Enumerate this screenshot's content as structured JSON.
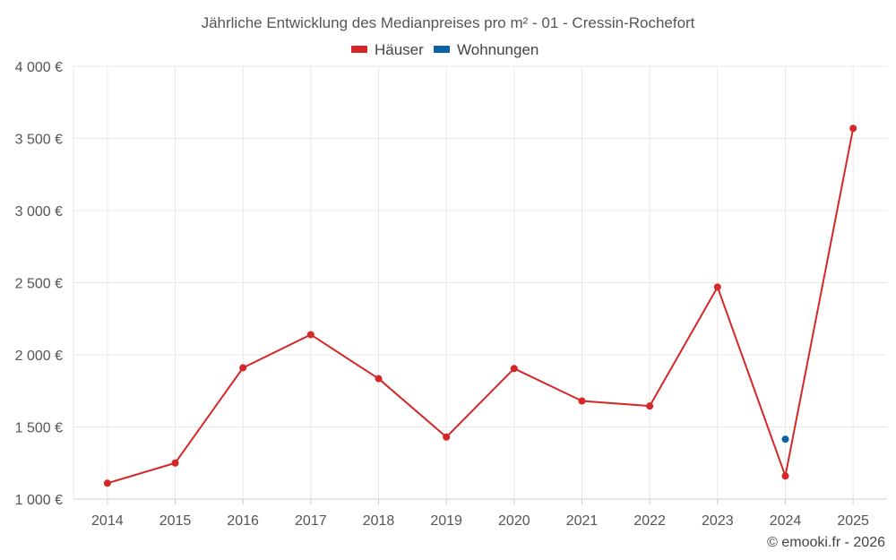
{
  "chart_data": {
    "type": "line",
    "title": "Jährliche Entwicklung des Medianpreises pro m² - 01 - Cressin-Rochefort",
    "categories": [
      "2014",
      "2015",
      "2016",
      "2017",
      "2018",
      "2019",
      "2020",
      "2021",
      "2022",
      "2023",
      "2024",
      "2025"
    ],
    "ylim": [
      1000,
      4000
    ],
    "yticks": [
      1000,
      1500,
      2000,
      2500,
      3000,
      3500,
      4000
    ],
    "ytick_labels": [
      "1 000 €",
      "1 500 €",
      "2 000 €",
      "2 500 €",
      "3 000 €",
      "3 500 €",
      "4 000 €"
    ],
    "grid": true,
    "legend_position": "top-center",
    "series": [
      {
        "name": "Häuser",
        "color": "#d62728",
        "values": [
          1110,
          1250,
          1910,
          2140,
          1835,
          1430,
          1905,
          1680,
          1645,
          2470,
          1160,
          3570
        ]
      },
      {
        "name": "Wohnungen",
        "color": "#0b62a4",
        "values": [
          null,
          null,
          null,
          null,
          null,
          null,
          null,
          null,
          null,
          null,
          1415,
          null
        ]
      }
    ],
    "credit": "© emooki.fr - 2026"
  }
}
